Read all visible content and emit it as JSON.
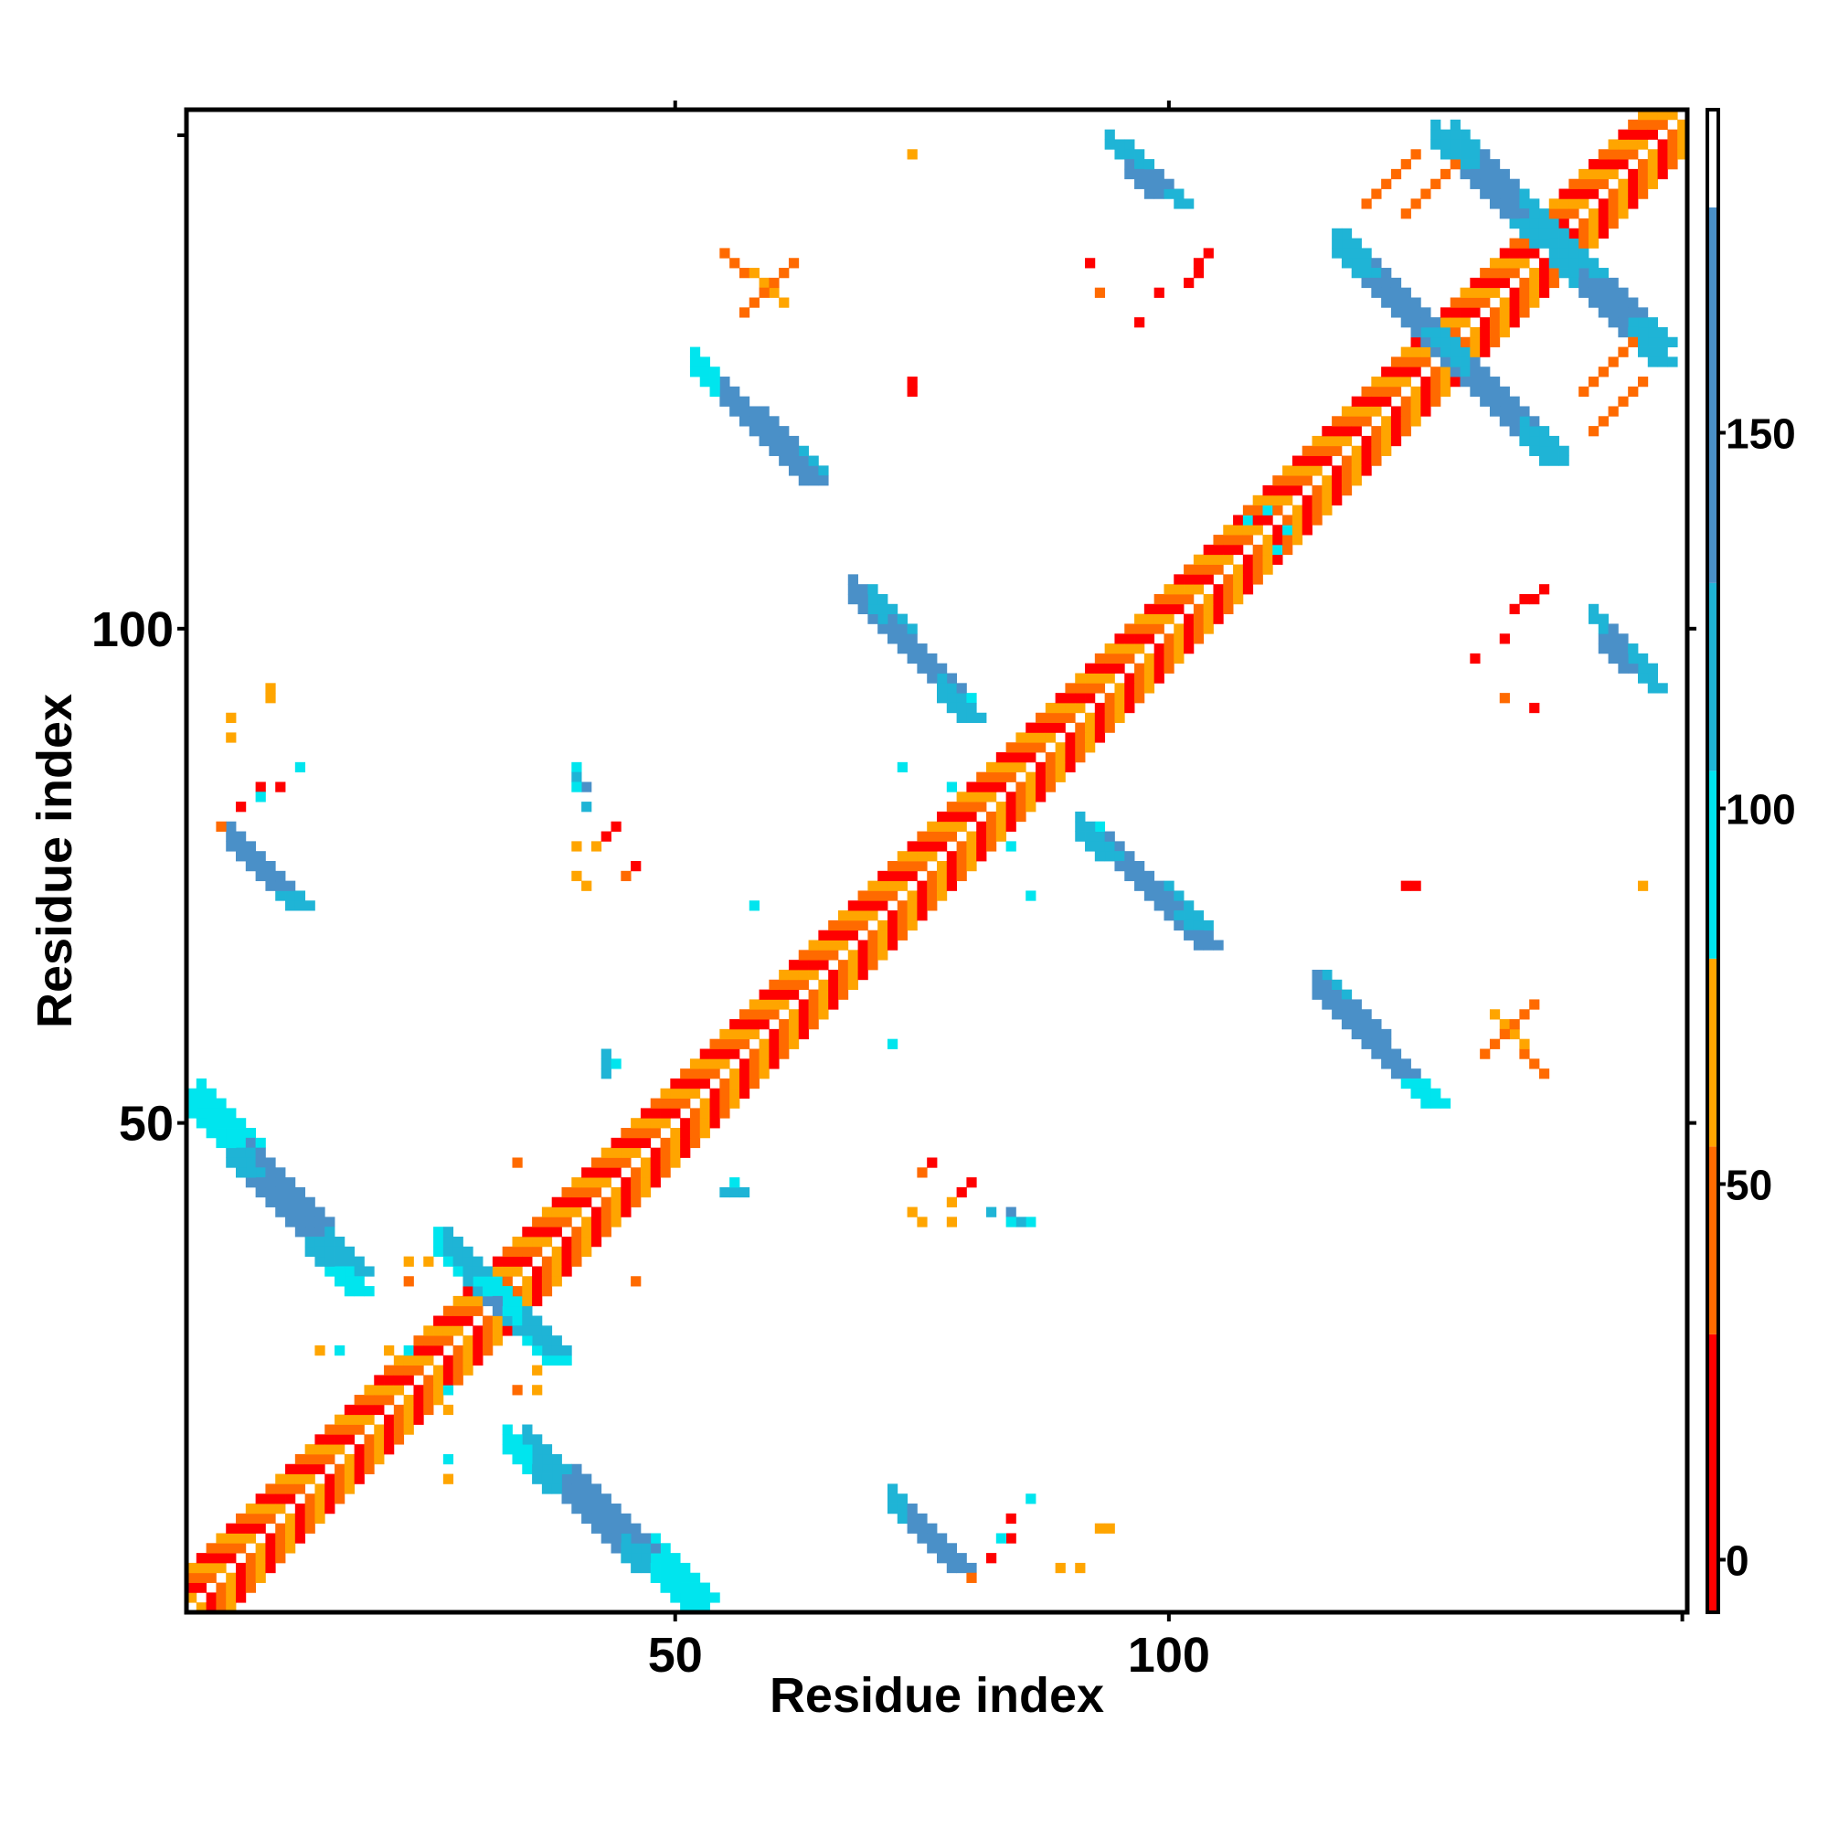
{
  "chart_data": {
    "type": "heatmap",
    "title": "",
    "xlabel": "Residue index",
    "ylabel": "Residue index",
    "xlim": [
      1,
      152
    ],
    "ylim": [
      1,
      152
    ],
    "x_ticks": [
      50,
      100
    ],
    "y_ticks": [
      50,
      100
    ],
    "colorbar": {
      "ticks": [
        0,
        50,
        100,
        150
      ],
      "range": [
        -7,
        193
      ],
      "bands": [
        {
          "from": -7,
          "to": 30,
          "color": "#ff0000"
        },
        {
          "from": 30,
          "to": 55,
          "color": "#ff6a00"
        },
        {
          "from": 55,
          "to": 80,
          "color": "#ffa500"
        },
        {
          "from": 80,
          "to": 105,
          "color": "#00e5ee"
        },
        {
          "from": 105,
          "to": 130,
          "color": "#1fb4d6"
        },
        {
          "from": 130,
          "to": 180,
          "color": "#4a90c8"
        },
        {
          "from": 180,
          "to": 193,
          "color": "#ffffff"
        }
      ]
    },
    "symmetric": true,
    "diagonal_band": {
      "from": 1,
      "to": 152,
      "colors": [
        "#ff0000",
        "#ff6a00",
        "#ffa500"
      ]
    },
    "segments": [
      {
        "x1": 2,
        "y1": 52,
        "x2": 17,
        "y2": 35,
        "values": [
          92,
          98,
          140,
          150,
          140,
          120
        ],
        "width": 3
      },
      {
        "x1": 26,
        "y1": 37,
        "x2": 37,
        "y2": 27,
        "values": [
          95,
          120,
          150,
          100,
          120
        ],
        "width": 3
      },
      {
        "x1": 33,
        "y1": 17,
        "x2": 51,
        "y2": 1,
        "values": [
          100,
          120,
          140,
          155,
          120,
          90
        ],
        "width": 3
      },
      {
        "x1": 72,
        "y1": 11,
        "x2": 78,
        "y2": 5,
        "values": [
          110,
          150,
          130
        ],
        "width": 3
      },
      {
        "x1": 93,
        "y1": 78,
        "x2": 103,
        "y2": 68,
        "values": [
          100,
          150,
          155,
          130
        ],
        "width": 3
      },
      {
        "x1": 70,
        "y1": 102,
        "x2": 79,
        "y2": 91,
        "values": [
          120,
          155,
          140,
          105
        ],
        "width": 3
      },
      {
        "x1": 116,
        "y1": 63,
        "x2": 124,
        "y2": 54,
        "values": [
          120,
          150,
          155,
          120
        ],
        "width": 3
      },
      {
        "x1": 52,
        "y1": 126,
        "x2": 63,
        "y2": 115,
        "values": [
          95,
          140,
          155,
          130
        ],
        "width": 3
      },
      {
        "x1": 94,
        "y1": 149,
        "x2": 98,
        "y2": 144,
        "values": [
          110,
          150
        ],
        "width": 2
      },
      {
        "x1": 118,
        "y1": 138,
        "x2": 127,
        "y2": 128,
        "values": [
          120,
          150,
          160,
          130
        ],
        "width": 3
      },
      {
        "x1": 129,
        "y1": 149,
        "x2": 138,
        "y2": 140,
        "values": [
          120,
          155,
          150,
          120
        ],
        "width": 3
      },
      {
        "x1": 139,
        "y1": 137,
        "x2": 149,
        "y2": 127,
        "values": [
          120,
          160,
          150,
          120
        ],
        "width": 3
      },
      {
        "x1": 128,
        "y1": 128,
        "x2": 138,
        "y2": 117,
        "values": [
          120,
          155,
          150,
          120
        ],
        "width": 3
      },
      {
        "x1": 143,
        "y1": 101,
        "x2": 148,
        "y2": 96,
        "values": [
          120,
          150,
          120
        ],
        "width": 2
      },
      {
        "x1": 55,
        "y1": 138,
        "x2": 61,
        "y2": 133,
        "values": [
          45,
          60
        ],
        "width": 1
      },
      {
        "x1": 124,
        "y1": 142,
        "x2": 129,
        "y2": 147,
        "values": [
          40,
          30
        ],
        "width": 1
      },
      {
        "x1": 143,
        "y1": 120,
        "x2": 148,
        "y2": 125,
        "values": [
          45,
          40
        ],
        "width": 1
      },
      {
        "x1": 132,
        "y1": 57,
        "x2": 137,
        "y2": 62,
        "values": [
          50,
          45
        ],
        "width": 1
      },
      {
        "x1": 135,
        "y1": 102,
        "x2": 138,
        "y2": 104,
        "values": [
          10,
          10
        ],
        "width": 1
      }
    ],
    "points": [
      {
        "x": 9,
        "y": 93,
        "value": 60
      },
      {
        "x": 9,
        "y": 94,
        "value": 60
      },
      {
        "x": 8,
        "y": 84,
        "value": 10
      },
      {
        "x": 10,
        "y": 84,
        "value": 10
      },
      {
        "x": 12,
        "y": 86,
        "value": 95
      },
      {
        "x": 40,
        "y": 86,
        "value": 95
      },
      {
        "x": 40,
        "y": 85,
        "value": 120
      },
      {
        "x": 41,
        "y": 84,
        "value": 140
      },
      {
        "x": 40,
        "y": 78,
        "value": 60
      },
      {
        "x": 42,
        "y": 78,
        "value": 60
      },
      {
        "x": 43,
        "y": 79,
        "value": 10
      },
      {
        "x": 44,
        "y": 80,
        "value": 10
      },
      {
        "x": 43,
        "y": 56,
        "value": 110
      },
      {
        "x": 43,
        "y": 55,
        "value": 120
      },
      {
        "x": 46,
        "y": 34,
        "value": 45
      },
      {
        "x": 23,
        "y": 34,
        "value": 45
      },
      {
        "x": 21,
        "y": 27,
        "value": 60
      },
      {
        "x": 23,
        "y": 27,
        "value": 95
      },
      {
        "x": 36,
        "y": 25,
        "value": 60
      },
      {
        "x": 36,
        "y": 23,
        "value": 60
      },
      {
        "x": 27,
        "y": 16,
        "value": 95
      },
      {
        "x": 27,
        "y": 14,
        "value": 60
      },
      {
        "x": 56,
        "y": 44,
        "value": 100
      },
      {
        "x": 57,
        "y": 43,
        "value": 120
      },
      {
        "x": 75,
        "y": 45,
        "value": 45
      },
      {
        "x": 76,
        "y": 46,
        "value": 10
      },
      {
        "x": 74,
        "y": 41,
        "value": 60
      },
      {
        "x": 75,
        "y": 40,
        "value": 60
      },
      {
        "x": 82,
        "y": 41,
        "value": 120
      },
      {
        "x": 84,
        "y": 40,
        "value": 100
      },
      {
        "x": 80,
        "y": 4,
        "value": 45
      },
      {
        "x": 82,
        "y": 6,
        "value": 10
      },
      {
        "x": 83,
        "y": 8,
        "value": 95
      },
      {
        "x": 89,
        "y": 5,
        "value": 60
      },
      {
        "x": 91,
        "y": 5,
        "value": 60
      },
      {
        "x": 74,
        "y": 148,
        "value": 45
      },
      {
        "x": 74,
        "y": 125,
        "value": 10
      },
      {
        "x": 92,
        "y": 137,
        "value": 10
      },
      {
        "x": 93,
        "y": 134,
        "value": 30
      },
      {
        "x": 73,
        "y": 86,
        "value": 95
      },
      {
        "x": 84,
        "y": 78,
        "value": 95
      },
      {
        "x": 72,
        "y": 58,
        "value": 95
      },
      {
        "x": 124,
        "y": 74,
        "value": 10
      },
      {
        "x": 148,
        "y": 74,
        "value": 60
      },
      {
        "x": 131,
        "y": 97,
        "value": 10
      },
      {
        "x": 134,
        "y": 99,
        "value": 10
      },
      {
        "x": 108,
        "y": 111,
        "value": 95
      },
      {
        "x": 112,
        "y": 110,
        "value": 95
      }
    ]
  }
}
